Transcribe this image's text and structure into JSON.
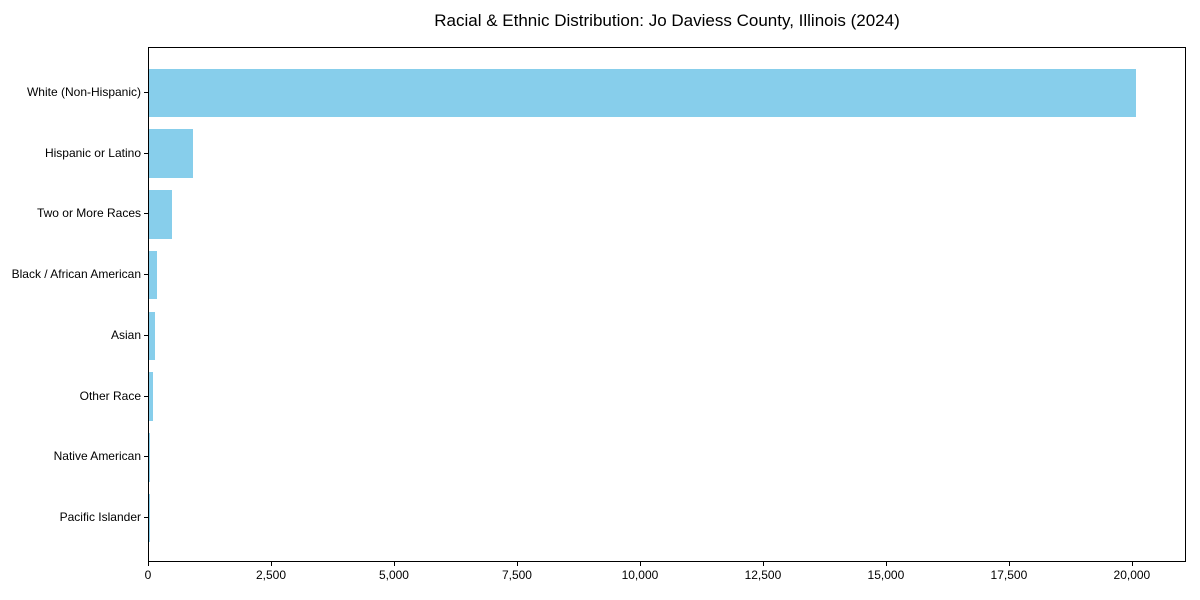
{
  "chart_data": {
    "type": "bar",
    "orientation": "horizontal",
    "title": "Racial & Ethnic Distribution: Jo Daviess County, Illinois (2024)",
    "categories": [
      "White (Non-Hispanic)",
      "Hispanic or Latino",
      "Two or More Races",
      "Black / African American",
      "Asian",
      "Other Race",
      "Native American",
      "Pacific Islander"
    ],
    "values": [
      20060,
      895,
      475,
      165,
      115,
      80,
      20,
      5
    ],
    "xlabel": "",
    "ylabel": "",
    "xlim": [
      0,
      21100
    ],
    "x_ticks": [
      0,
      2500,
      5000,
      7500,
      10000,
      12500,
      15000,
      17500,
      20000
    ],
    "x_tick_labels": [
      "0",
      "2,500",
      "5,000",
      "7,500",
      "10,000",
      "12,500",
      "15,000",
      "17,500",
      "20,000"
    ],
    "bar_color": "#87ceeb",
    "bar_height_frac": 0.8,
    "grid": false,
    "legend": false
  }
}
